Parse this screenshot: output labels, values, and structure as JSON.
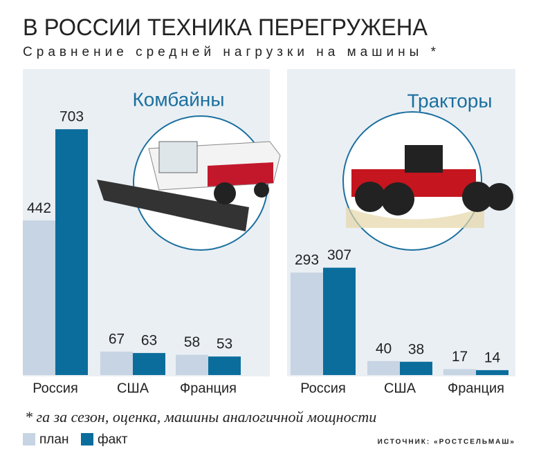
{
  "title": "В РОССИИ ТЕХНИКА ПЕРЕГРУЖЕНА",
  "subtitle": "Сравнение средней нагрузки на машины *",
  "footnote": "* га за сезон, оценка, машины аналогичной мощности",
  "source": "ИСТОЧНИК: «РОСТСЕЛЬМАШ»",
  "chart_data": [
    {
      "type": "bar",
      "title": "Комбайны",
      "categories": [
        "Россия",
        "США",
        "Франция"
      ],
      "series": [
        {
          "name": "план",
          "color": "#c6d4e3",
          "values": [
            442,
            67,
            58
          ]
        },
        {
          "name": "факт",
          "color": "#0b6d9c",
          "values": [
            703,
            63,
            53
          ]
        }
      ],
      "ylim": [
        0,
        800
      ]
    },
    {
      "type": "bar",
      "title": "Тракторы",
      "categories": [
        "Россия",
        "США",
        "Франция"
      ],
      "series": [
        {
          "color": "#c6d4e3",
          "values": [
            293,
            40,
            17
          ]
        },
        {
          "color": "#0b6d9c",
          "values": [
            307,
            38,
            14
          ]
        }
      ],
      "ylim": [
        0,
        800
      ]
    }
  ]
}
